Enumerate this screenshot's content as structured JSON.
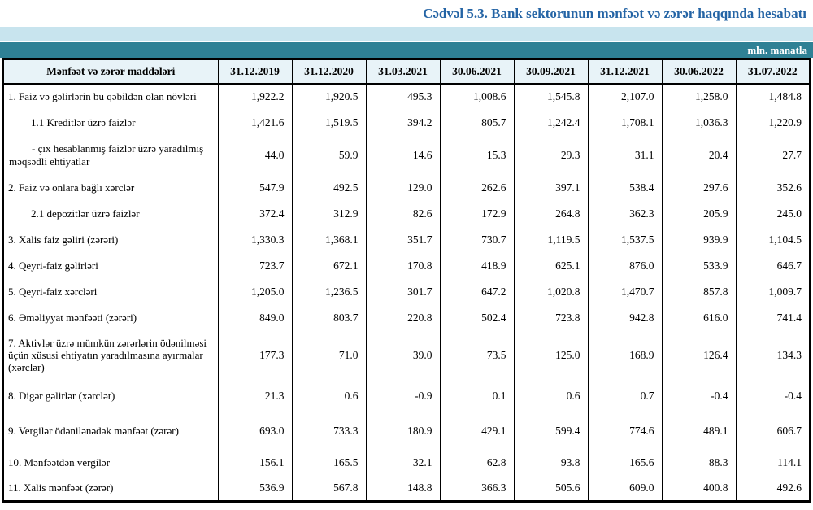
{
  "title": "Cədvəl 5.3. Bank sektorunun mənfəət və zərər haqqında hesabatı",
  "unit_label": "mln. manatla",
  "colors": {
    "title_blue": "#2464a5",
    "band_light": "#c8e4ee",
    "band_teal": "#2f8195",
    "header_bg": "#e8f3f8",
    "border": "#000000"
  },
  "table": {
    "header_label": "Mənfəət və zərər maddələri",
    "columns": [
      "31.12.2019",
      "31.12.2020",
      "31.03.2021",
      "30.06.2021",
      "30.09.2021",
      "31.12.2021",
      "30.06.2022",
      "31.07.2022"
    ],
    "rows": [
      {
        "label": "1. Faiz və gəlirlərin bu qəbildən olan növləri",
        "indent": 0,
        "values": [
          "1,922.2",
          "1,920.5",
          "495.3",
          "1,008.6",
          "1,545.8",
          "2,107.0",
          "1,258.0",
          "1,484.8"
        ]
      },
      {
        "label": "1.1 Kreditlər üzrə faizlər",
        "indent": 1,
        "values": [
          "1,421.6",
          "1,519.5",
          "394.2",
          "805.7",
          "1,242.4",
          "1,708.1",
          "1,036.3",
          "1,220.9"
        ]
      },
      {
        "label": "-  çıx hesablanmış faizlər üzrə yaradılmış məqsədli ehtiyatlar",
        "indent": 2,
        "values": [
          "44.0",
          "59.9",
          "14.6",
          "15.3",
          "29.3",
          "31.1",
          "20.4",
          "27.7"
        ]
      },
      {
        "label": "2. Faiz və onlara bağlı xərclər",
        "indent": 0,
        "values": [
          "547.9",
          "492.5",
          "129.0",
          "262.6",
          "397.1",
          "538.4",
          "297.6",
          "352.6"
        ]
      },
      {
        "label": "2.1 depozitlər üzrə faizlər",
        "indent": 1,
        "values": [
          "372.4",
          "312.9",
          "82.6",
          "172.9",
          "264.8",
          "362.3",
          "205.9",
          "245.0"
        ]
      },
      {
        "label": "3. Xalis faiz gəliri (zərəri)",
        "indent": 0,
        "values": [
          "1,330.3",
          "1,368.1",
          "351.7",
          "730.7",
          "1,119.5",
          "1,537.5",
          "939.9",
          "1,104.5"
        ]
      },
      {
        "label": "4. Qeyri-faiz gəlirləri",
        "indent": 0,
        "values": [
          "723.7",
          "672.1",
          "170.8",
          "418.9",
          "625.1",
          "876.0",
          "533.9",
          "646.7"
        ]
      },
      {
        "label": "5. Qeyri-faiz xərcləri",
        "indent": 0,
        "values": [
          "1,205.0",
          "1,236.5",
          "301.7",
          "647.2",
          "1,020.8",
          "1,470.7",
          "857.8",
          "1,009.7"
        ]
      },
      {
        "label": "6. Əməliyyat mənfəəti (zərəri)",
        "indent": 0,
        "values": [
          "849.0",
          "803.7",
          "220.8",
          "502.4",
          "723.8",
          "942.8",
          "616.0",
          "741.4"
        ]
      },
      {
        "label": "7. Aktivlər üzrə mümkün zərərlərin ödənilməsi üçün xüsusi ehtiyatın yaradılmasına ayırmalar (xərclər)",
        "indent": 0,
        "values": [
          "177.3",
          "71.0",
          "39.0",
          "73.5",
          "125.0",
          "168.9",
          "126.4",
          "134.3"
        ]
      },
      {
        "label": "8. Digər gəlirlər (xərclər)",
        "indent": 0,
        "values": [
          "21.3",
          "0.6",
          "-0.9",
          "0.1",
          "0.6",
          "0.7",
          "-0.4",
          "-0.4"
        ]
      },
      {
        "label": "9. Vergilər ödənilənədək mənfəət (zərər)",
        "indent": 0,
        "values": [
          "693.0",
          "733.3",
          "180.9",
          "429.1",
          "599.4",
          "774.6",
          "489.1",
          "606.7"
        ]
      },
      {
        "label": "10. Mənfəətdən vergilər",
        "indent": 0,
        "values": [
          "156.1",
          "165.5",
          "32.1",
          "62.8",
          "93.8",
          "165.6",
          "88.3",
          "114.1"
        ]
      },
      {
        "label": "11. Xalis mənfəət (zərər)",
        "indent": 0,
        "values": [
          "536.9",
          "567.8",
          "148.8",
          "366.3",
          "505.6",
          "609.0",
          "400.8",
          "492.6"
        ]
      }
    ]
  }
}
